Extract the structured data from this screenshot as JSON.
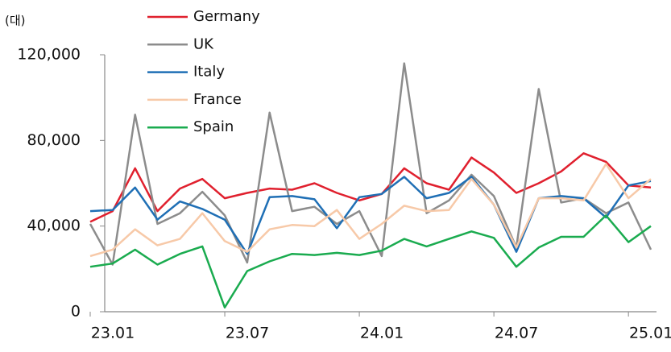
{
  "chart_data": {
    "type": "line",
    "y_label": "(대)",
    "categories": [
      "23.01",
      null,
      null,
      null,
      null,
      null,
      "23.07",
      null,
      null,
      null,
      null,
      null,
      "24.01",
      null,
      null,
      null,
      null,
      null,
      "24.07",
      null,
      null,
      null,
      null,
      null,
      "25.01",
      null
    ],
    "series": [
      {
        "name": "Germany",
        "color": "#e0202e",
        "values": [
          42000,
          47000,
          67000,
          47000,
          57500,
          62000,
          53000,
          55500,
          57500,
          57000,
          60000,
          55500,
          52000,
          55000,
          67000,
          60000,
          57000,
          72000,
          65000,
          55500,
          60000,
          65500,
          74000,
          70000,
          59000,
          58000
        ]
      },
      {
        "name": "UK",
        "color": "#8c8c8c",
        "values": [
          41000,
          22000,
          92000,
          41000,
          46000,
          56000,
          45000,
          23000,
          93000,
          47000,
          49000,
          41000,
          47000,
          26000,
          116000,
          46000,
          52000,
          64000,
          54000,
          30000,
          104000,
          51000,
          53000,
          46000,
          51000,
          29000
        ]
      },
      {
        "name": "Italy",
        "color": "#1f6fb5",
        "values": [
          47000,
          47500,
          58000,
          43000,
          51500,
          48000,
          43000,
          27000,
          53500,
          54000,
          52500,
          39000,
          53500,
          55000,
          63000,
          53000,
          55500,
          63000,
          50000,
          28000,
          53000,
          54000,
          53000,
          44000,
          59000,
          61000
        ]
      },
      {
        "name": "France",
        "color": "#f7c9a8",
        "values": [
          26000,
          29000,
          38500,
          31000,
          34000,
          46000,
          33000,
          28000,
          38500,
          40500,
          40000,
          47500,
          34000,
          41000,
          49500,
          47000,
          47500,
          62000,
          50000,
          30000,
          53000,
          53000,
          52000,
          69000,
          53000,
          62000
        ]
      },
      {
        "name": "Spain",
        "color": "#1aab4f",
        "values": [
          21000,
          22500,
          29000,
          22000,
          27000,
          30500,
          2000,
          19000,
          23500,
          27000,
          26500,
          27500,
          26500,
          28500,
          34000,
          30500,
          34000,
          37500,
          34500,
          21000,
          30000,
          35000,
          35000,
          45000,
          32500,
          40000
        ]
      }
    ],
    "ylim": [
      0,
      120000
    ],
    "yticks": [
      0,
      {
        "value": 40000,
        "label": "40,000"
      },
      {
        "value": 80000,
        "label": "80,000"
      },
      {
        "value": 120000,
        "label": "120,000"
      }
    ],
    "legend": "top"
  }
}
